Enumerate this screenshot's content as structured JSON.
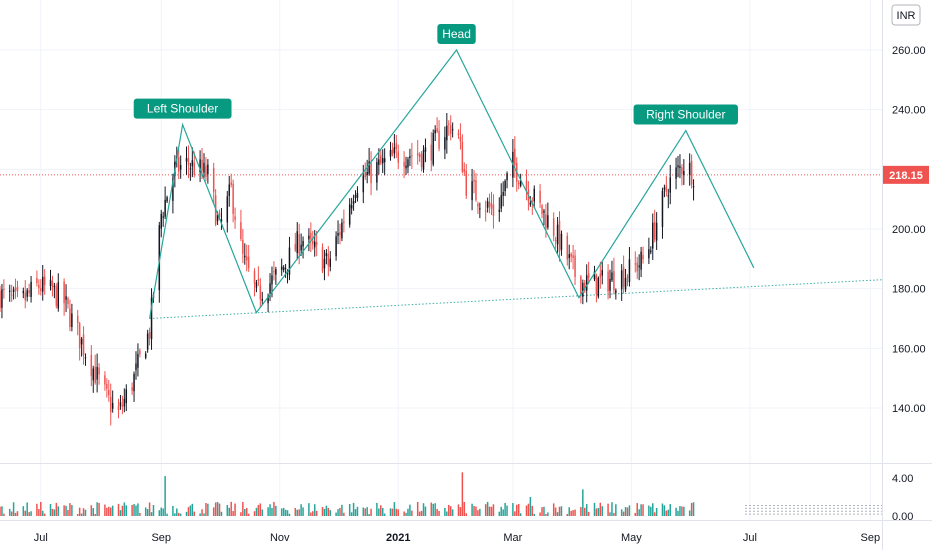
{
  "currency": "INR",
  "last_price_label": "218.15",
  "colors": {
    "up": "#26a69a",
    "down": "#ef5350",
    "candle": "#131722",
    "pattern": "#26a69a",
    "label_bg": "#089981",
    "last_price": "#ef5350",
    "grid": "#f0f3fa",
    "volume_up": "#26a69a",
    "volume_down": "#ef5350"
  },
  "chart_data": {
    "type": "candlestick",
    "title": "",
    "price_axis": {
      "ticks": [
        "260.00",
        "240.00",
        "220.00",
        "200.00",
        "180.00",
        "160.00",
        "140.00"
      ],
      "tick_values": [
        260,
        240,
        220,
        200,
        180,
        160,
        140
      ],
      "range": [
        120,
        276
      ]
    },
    "time_axis": {
      "labels": [
        "Jul",
        "Sep",
        "Nov",
        "2021",
        "Mar",
        "May",
        "Jul",
        "Sep"
      ],
      "label_dates": [
        "2020-07-01",
        "2020-09-01",
        "2020-11-01",
        "2021-01-01",
        "2021-03-01",
        "2021-05-01",
        "2021-07-01",
        "2021-09-01"
      ],
      "range": [
        "2020-06-10",
        "2021-09-07"
      ]
    },
    "volume_axis": {
      "ticks": [
        "4.00",
        "0.00"
      ],
      "tick_values": [
        4,
        0
      ],
      "range": [
        0,
        5
      ]
    },
    "last_price": 218.15,
    "pattern": {
      "name": "Head and Shoulders",
      "points": [
        {
          "date": "2020-08-26",
          "price": 170
        },
        {
          "date": "2020-09-12",
          "price": 235
        },
        {
          "date": "2020-10-20",
          "price": 172
        },
        {
          "date": "2021-01-31",
          "price": 260
        },
        {
          "date": "2021-04-04",
          "price": 177
        },
        {
          "date": "2021-05-29",
          "price": 233
        },
        {
          "date": "2021-07-03",
          "price": 187
        }
      ],
      "labels": [
        {
          "text": "Left Shoulder",
          "date": "2020-09-12",
          "price": 235
        },
        {
          "text": "Head",
          "date": "2021-01-31",
          "price": 260
        },
        {
          "text": "Right Shoulder",
          "date": "2021-05-29",
          "price": 233
        }
      ],
      "neckline": [
        {
          "date": "2020-08-26",
          "price": 170
        },
        {
          "date": "2021-09-07",
          "price": 183
        }
      ]
    },
    "price_anchors": [
      {
        "date": "2020-06-10",
        "price": 178
      },
      {
        "date": "2020-06-20",
        "price": 175
      },
      {
        "date": "2020-06-30",
        "price": 181
      },
      {
        "date": "2020-07-12",
        "price": 177
      },
      {
        "date": "2020-07-22",
        "price": 162
      },
      {
        "date": "2020-08-04",
        "price": 143
      },
      {
        "date": "2020-08-10",
        "price": 138
      },
      {
        "date": "2020-08-18",
        "price": 150
      },
      {
        "date": "2020-08-26",
        "price": 166
      },
      {
        "date": "2020-09-01",
        "price": 205
      },
      {
        "date": "2020-09-08",
        "price": 220
      },
      {
        "date": "2020-09-15",
        "price": 222
      },
      {
        "date": "2020-09-25",
        "price": 218
      },
      {
        "date": "2020-10-01",
        "price": 200
      },
      {
        "date": "2020-10-07",
        "price": 213
      },
      {
        "date": "2020-10-13",
        "price": 190
      },
      {
        "date": "2020-10-20",
        "price": 178
      },
      {
        "date": "2020-11-01",
        "price": 185
      },
      {
        "date": "2020-11-12",
        "price": 197
      },
      {
        "date": "2020-11-26",
        "price": 188
      },
      {
        "date": "2020-12-10",
        "price": 215
      },
      {
        "date": "2020-12-20",
        "price": 220
      },
      {
        "date": "2021-01-01",
        "price": 225
      },
      {
        "date": "2021-01-15",
        "price": 225
      },
      {
        "date": "2021-01-28",
        "price": 235
      },
      {
        "date": "2021-02-01",
        "price": 230
      },
      {
        "date": "2021-02-05",
        "price": 215
      },
      {
        "date": "2021-02-20",
        "price": 205
      },
      {
        "date": "2021-03-01",
        "price": 222
      },
      {
        "date": "2021-03-12",
        "price": 210
      },
      {
        "date": "2021-03-22",
        "price": 200
      },
      {
        "date": "2021-04-04",
        "price": 182
      },
      {
        "date": "2021-04-15",
        "price": 182
      },
      {
        "date": "2021-04-28",
        "price": 185
      },
      {
        "date": "2021-05-08",
        "price": 190
      },
      {
        "date": "2021-05-20",
        "price": 215
      },
      {
        "date": "2021-05-28",
        "price": 222
      },
      {
        "date": "2021-06-03",
        "price": 218
      }
    ],
    "volume_spikes": [
      {
        "date": "2020-09-03",
        "value": 4.2
      },
      {
        "date": "2021-02-03",
        "value": 4.6
      },
      {
        "date": "2021-03-10",
        "value": 2.0
      },
      {
        "date": "2021-04-06",
        "value": 2.8
      },
      {
        "date": "2020-12-13",
        "value": 2.5
      }
    ],
    "grid": true
  }
}
